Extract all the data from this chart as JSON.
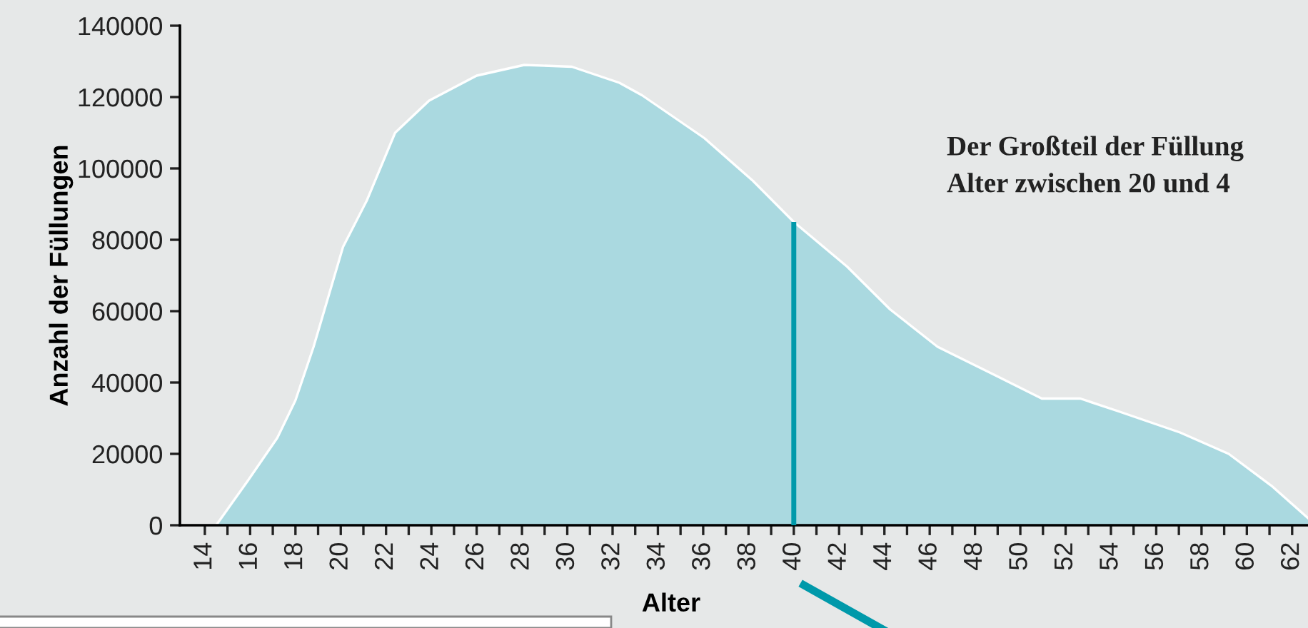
{
  "chart_data": {
    "type": "area",
    "xlabel": "Alter",
    "ylabel": "Anzahl der Füllungen",
    "x": [
      14.5,
      15.9,
      17.2,
      18.0,
      18.8,
      20.1,
      21.15,
      22.4,
      23.9,
      26.0,
      28.1,
      30.2,
      32.3,
      33.3,
      36.05,
      38.2,
      40.0,
      42.35,
      44.25,
      46.35,
      48.9,
      50.95,
      52.65,
      54.3,
      57.05,
      59.2,
      61.1,
      62.7
    ],
    "series": [
      {
        "color": "#aad9e0",
        "values": [
          0,
          12500,
          24500,
          35000,
          50000,
          78000,
          91000,
          110000,
          119000,
          126000,
          129000,
          128500,
          124000,
          120500,
          108500,
          96500,
          85000,
          72500,
          60500,
          50000,
          42000,
          35500,
          35500,
          32000,
          26000,
          20000,
          11000,
          2000
        ]
      }
    ],
    "xlim": [
      12.9,
      62.7
    ],
    "xticks": [
      14,
      {
        "value": 15,
        "label": null
      },
      16,
      {
        "value": 17,
        "label": null
      },
      18,
      {
        "value": 19,
        "label": null
      },
      20,
      {
        "value": 21,
        "label": null
      },
      22,
      {
        "value": 23,
        "label": null
      },
      24,
      {
        "value": 25,
        "label": null
      },
      26,
      {
        "value": 27,
        "label": null
      },
      28,
      {
        "value": 29,
        "label": null
      },
      30,
      {
        "value": 31,
        "label": null
      },
      32,
      {
        "value": 33,
        "label": null
      },
      34,
      {
        "value": 35,
        "label": null
      },
      36,
      {
        "value": 37,
        "label": null
      },
      38,
      {
        "value": 39,
        "label": null
      },
      40,
      {
        "value": 41,
        "label": null
      },
      42,
      {
        "value": 43,
        "label": null
      },
      44,
      {
        "value": 45,
        "label": null
      },
      46,
      {
        "value": 47,
        "label": null
      },
      48,
      {
        "value": 49,
        "label": null
      },
      50,
      {
        "value": 51,
        "label": null
      },
      52,
      {
        "value": 53,
        "label": null
      },
      54,
      {
        "value": 55,
        "label": null
      },
      56,
      {
        "value": 57,
        "label": null
      },
      58,
      {
        "value": 59,
        "label": null
      },
      60,
      {
        "value": 61,
        "label": null
      },
      62
    ],
    "ylim": [
      0,
      140000
    ],
    "yticks": [
      0,
      20000,
      40000,
      60000,
      80000,
      100000,
      120000,
      140000
    ],
    "ref_lines": [
      {
        "axis": "x",
        "value": 40,
        "color": "#0099aa"
      }
    ],
    "annotations": [
      "Der Großteil der Füllung\nAlter zwischen 20 und 4"
    ],
    "grid": false
  }
}
